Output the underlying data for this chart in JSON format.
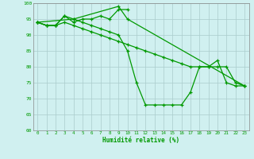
{
  "xlabel": "Humidité relative (%)",
  "background_color": "#d0f0f0",
  "grid_color": "#aacccc",
  "line_color": "#009900",
  "xlim": [
    -0.5,
    23.5
  ],
  "ylim": [
    60,
    100
  ],
  "ytick_values": [
    60,
    65,
    70,
    75,
    80,
    85,
    90,
    95,
    100
  ],
  "line1_x": [
    0,
    1,
    2,
    3,
    4,
    5,
    6,
    7,
    8,
    9,
    10
  ],
  "line1_y": [
    94,
    93,
    93,
    96,
    94,
    95,
    95,
    96,
    95,
    98,
    98
  ],
  "line2_x": [
    0,
    1,
    2,
    3,
    4,
    5,
    6,
    7,
    8,
    9,
    10,
    11,
    12,
    13,
    14,
    15,
    16,
    17,
    18,
    19,
    20,
    21,
    22,
    23
  ],
  "line2_y": [
    94,
    93,
    93,
    96,
    95,
    94,
    93,
    92,
    91,
    90,
    85,
    75,
    68,
    68,
    68,
    68,
    68,
    72,
    80,
    80,
    82,
    75,
    74,
    74
  ],
  "line3_x": [
    0,
    1,
    2,
    3,
    4,
    5,
    6,
    7,
    8,
    9,
    10,
    11,
    12,
    13,
    14,
    15,
    16,
    17,
    18,
    19,
    20,
    21,
    22,
    23
  ],
  "line3_y": [
    94,
    93,
    93,
    94,
    93,
    92,
    91,
    90,
    89,
    88,
    87,
    86,
    85,
    84,
    83,
    82,
    81,
    80,
    80,
    80,
    80,
    80,
    75,
    74
  ],
  "line4_x": [
    0,
    4,
    9,
    10,
    23
  ],
  "line4_y": [
    94,
    95,
    99,
    95,
    74
  ]
}
